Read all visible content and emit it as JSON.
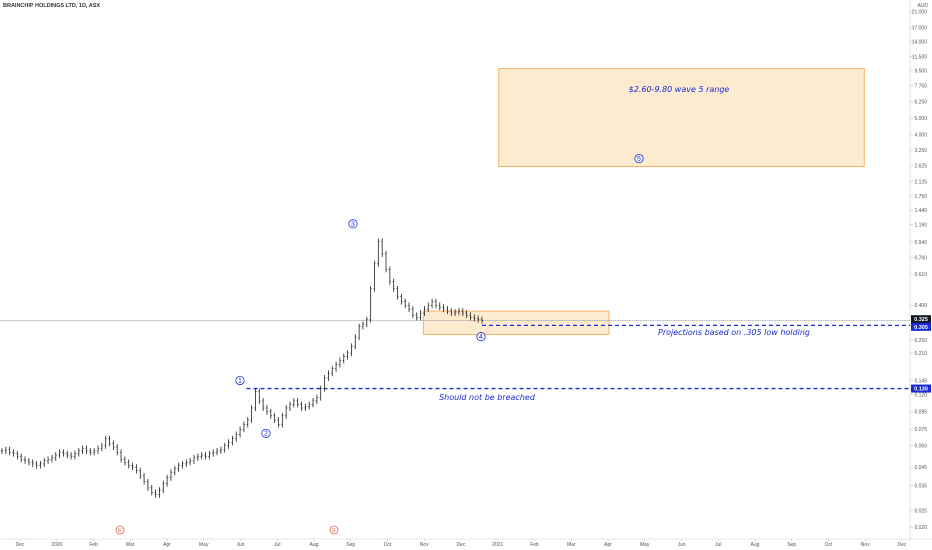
{
  "header": {
    "title": "BRAINCHIP HOLDINGS LTD, 1D, ASX",
    "currency": "AUD"
  },
  "chart_data": {
    "type": "line",
    "title": "BRAINCHIP HOLDINGS LTD, 1D, ASX",
    "scale": "log",
    "ylim": [
      0.018,
      24
    ],
    "price_ticks": [
      "0.020",
      "0.025",
      "0.035",
      "0.045",
      "0.060",
      "0.075",
      "0.095",
      "0.120",
      "0.145",
      "0.210",
      "0.250",
      "0.305",
      "0.400",
      "0.610",
      "0.760",
      "0.940",
      "1.190",
      "1.440",
      "1.750",
      "2.125",
      "2.625",
      "3.250",
      "4.000",
      "5.000",
      "6.250",
      "7.750",
      "9.500",
      "11.500",
      "14.000",
      "17.000",
      "21.000"
    ],
    "x_labels": [
      "Dec",
      "2020",
      "Feb",
      "Mar",
      "Apr",
      "May",
      "Jun",
      "Jul",
      "Aug",
      "Sep",
      "Oct",
      "Nov",
      "Dec",
      "2021",
      "Feb",
      "Mar",
      "Apr",
      "May",
      "Jun",
      "Jul",
      "Aug",
      "Sep",
      "Oct",
      "Nov",
      "Dec"
    ],
    "series": [
      {
        "values": [
          0.056,
          0.057,
          0.055,
          0.054,
          0.052,
          0.05,
          0.049,
          0.048,
          0.047,
          0.046,
          0.047,
          0.049,
          0.05,
          0.051,
          0.053,
          0.055,
          0.054,
          0.053,
          0.052,
          0.054,
          0.056,
          0.058,
          0.056,
          0.055,
          0.056,
          0.058,
          0.06,
          0.066,
          0.062,
          0.059,
          0.055,
          0.05,
          0.048,
          0.046,
          0.045,
          0.043,
          0.04,
          0.037,
          0.034,
          0.032,
          0.031,
          0.033,
          0.036,
          0.039,
          0.042,
          0.044,
          0.046,
          0.047,
          0.048,
          0.049,
          0.051,
          0.052,
          0.053,
          0.052,
          0.054,
          0.055,
          0.056,
          0.057,
          0.06,
          0.063,
          0.066,
          0.07,
          0.075,
          0.08,
          0.085,
          0.1,
          0.125,
          0.11,
          0.1,
          0.095,
          0.09,
          0.085,
          0.08,
          0.09,
          0.1,
          0.105,
          0.11,
          0.105,
          0.1,
          0.102,
          0.105,
          0.11,
          0.115,
          0.13,
          0.15,
          0.16,
          0.17,
          0.18,
          0.19,
          0.2,
          0.21,
          0.23,
          0.26,
          0.3,
          0.31,
          0.33,
          0.5,
          0.7,
          0.95,
          0.8,
          0.65,
          0.55,
          0.5,
          0.45,
          0.42,
          0.4,
          0.38,
          0.35,
          0.34,
          0.36,
          0.38,
          0.4,
          0.42,
          0.4,
          0.39,
          0.38,
          0.37,
          0.36,
          0.365,
          0.37,
          0.36,
          0.35,
          0.34,
          0.335,
          0.33,
          0.325
        ]
      }
    ],
    "current_price": "0.325",
    "levels": [
      {
        "value": 0.305,
        "label": "0.305",
        "style": "dashed",
        "color": "#1a2bd6"
      },
      {
        "value": 0.13,
        "label": "0.130",
        "style": "dashed",
        "color": "#1a2bd6"
      }
    ],
    "zones": [
      {
        "y_range": [
          2.6,
          9.8
        ],
        "color": "#ffa726"
      },
      {
        "y_range": [
          0.27,
          0.37
        ],
        "color": "#ffa726"
      }
    ],
    "wave_labels": [
      "1",
      "2",
      "3",
      "4",
      "5"
    ],
    "event_markers": [
      "E",
      "E"
    ],
    "annotations": [
      "$2.60-9.80 wave 5 range",
      "Projections based on .305 low holding",
      "Should not be breached"
    ]
  },
  "colors": {
    "accent": "#1a2bd6",
    "zone_fill": "#fde7c8",
    "zone_stroke": "#f5a44a",
    "price_label_bg": "#131722",
    "level_label_bg": "#1a2bd6",
    "event_color": "#e0674a"
  }
}
